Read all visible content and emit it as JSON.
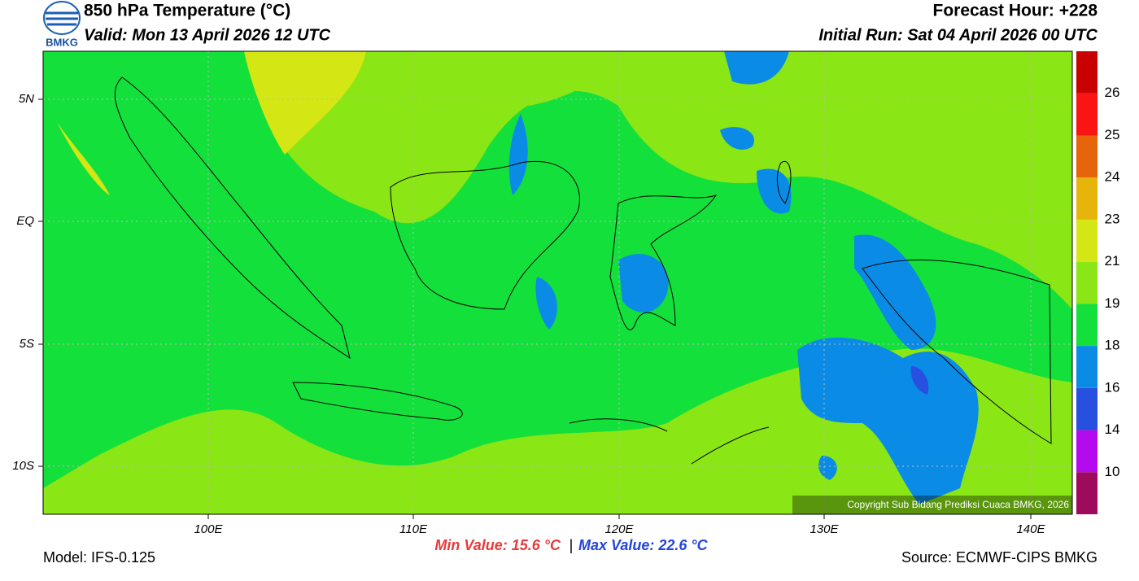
{
  "header": {
    "logo": "BMKG",
    "title": "850 hPa Temperature (°C)",
    "valid": "Valid: Mon 13 April 2026 12 UTC",
    "forecast_hour": "Forecast Hour: +228",
    "initial_run": "Initial Run: Sat 04 April 2026 00 UTC"
  },
  "map": {
    "lat_labels": [
      "5N",
      "EQ",
      "5S",
      "10S"
    ],
    "lon_labels": [
      "100E",
      "110E",
      "120E",
      "130E",
      "140E"
    ],
    "copyright": "Copyright Sub Bidang Prediksi Cuaca BMKG, 2026"
  },
  "colorbar": {
    "labels": [
      "10",
      "14",
      "16",
      "18",
      "19",
      "21",
      "23",
      "24",
      "25",
      "26"
    ],
    "colors": [
      "#9e0a5c",
      "#b40aee",
      "#2850e0",
      "#0a8ce6",
      "#14e03c",
      "#8ae614",
      "#d4e614",
      "#e6b40a",
      "#e6640a",
      "#fa1414",
      "#c80000"
    ]
  },
  "footer": {
    "min_value": "Min Value: 15.6 °C",
    "separator": "|",
    "max_value": "Max Value: 22.6 °C",
    "model": "Model: IFS-0.125",
    "source": "Source: ECMWF-CIPS BMKG"
  }
}
